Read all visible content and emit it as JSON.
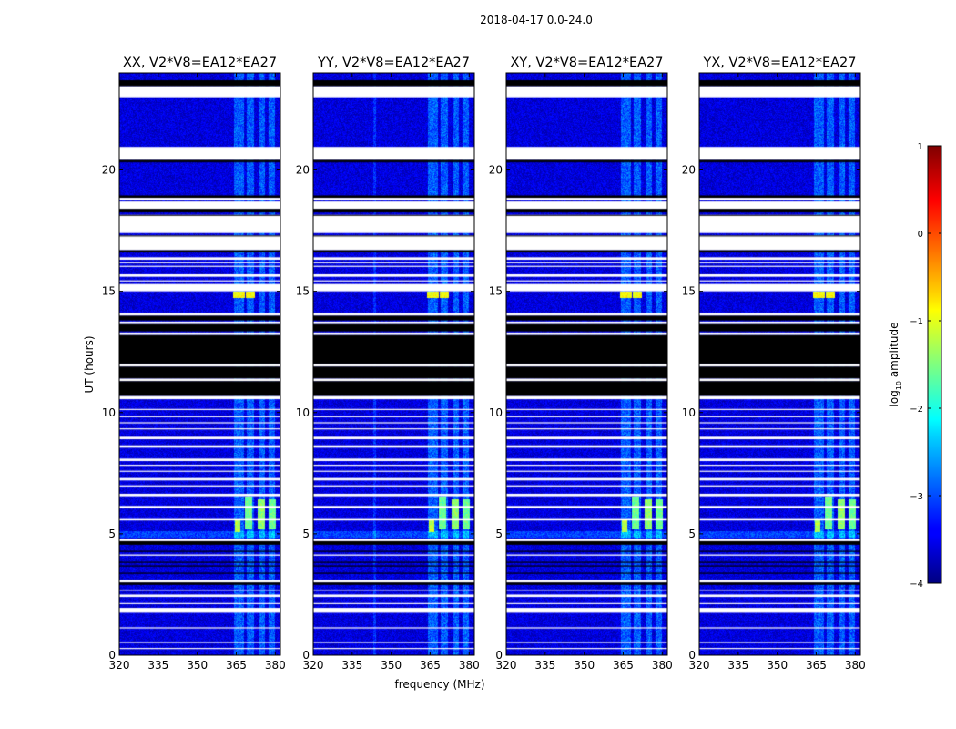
{
  "suptitle": "2018-04-17 0.0-24.0",
  "chart_data": {
    "type": "heatmap",
    "xlabel": "frequency (MHz)",
    "ylabel": "UT (hours)",
    "xlim": [
      320,
      382
    ],
    "ylim": [
      0,
      24
    ],
    "xticks": [
      320,
      335,
      350,
      365,
      380
    ],
    "yticks": [
      0,
      5,
      10,
      15,
      20
    ],
    "colorbar": {
      "label": "log",
      "label_sub": "10",
      "label_rest": " amplitude",
      "range": [
        -4,
        1
      ],
      "ticks": [
        1,
        0,
        -1,
        -2,
        -3,
        -4
      ],
      "colormap": "jet",
      "under_label": "......"
    },
    "flagged_color": "#000000",
    "panels": [
      {
        "title": "XX, V2*V8=EA12*EA27"
      },
      {
        "title": "YY, V2*V8=EA12*EA27"
      },
      {
        "title": "XY, V2*V8=EA12*EA27"
      },
      {
        "title": "YX, V2*V8=EA12*EA27"
      }
    ],
    "no_data_intervals_hours": [
      [
        23.0,
        23.45
      ],
      [
        20.42,
        20.95
      ],
      [
        18.75,
        18.85
      ],
      [
        18.4,
        18.7
      ],
      [
        17.4,
        18.15
      ],
      [
        16.7,
        17.3
      ],
      [
        16.3,
        16.4
      ],
      [
        15.6,
        15.7
      ],
      [
        15.0,
        15.3
      ],
      [
        14.0,
        14.1
      ],
      [
        13.65,
        13.75
      ],
      [
        13.2,
        13.3
      ],
      [
        11.9,
        12.0
      ],
      [
        11.3,
        11.4
      ],
      [
        10.55,
        10.68
      ],
      [
        8.9,
        9.0
      ],
      [
        8.55,
        8.65
      ],
      [
        8.0,
        8.1
      ],
      [
        7.2,
        7.3
      ],
      [
        6.95,
        7.0
      ],
      [
        6.55,
        6.65
      ],
      [
        6.05,
        6.15
      ],
      [
        5.55,
        5.65
      ],
      [
        4.7,
        4.8
      ],
      [
        4.1,
        4.15
      ],
      [
        3.0,
        3.1
      ],
      [
        2.4,
        2.5
      ],
      [
        1.75,
        1.95
      ]
    ],
    "flagged_intervals_hours": [
      [
        23.45,
        23.7
      ],
      [
        20.35,
        20.42
      ],
      [
        18.85,
        18.95
      ],
      [
        18.25,
        18.4
      ],
      [
        17.97,
        18.05
      ],
      [
        16.6,
        16.7
      ],
      [
        13.8,
        14.0
      ],
      [
        13.35,
        13.65
      ],
      [
        12.0,
        13.2
      ],
      [
        11.4,
        11.9
      ],
      [
        10.68,
        11.3
      ],
      [
        4.55,
        4.7
      ],
      [
        2.9,
        3.0
      ]
    ],
    "features": [
      {
        "label": "bright band",
        "freq_mhz": [
          364.5,
          366.5
        ],
        "hours": [
          5.1,
          5.6
        ],
        "log10_amplitude": -1.2
      },
      {
        "label": "bright band",
        "freq_mhz": [
          368.5,
          371.0
        ],
        "hours": [
          5.2,
          6.5
        ],
        "log10_amplitude": -1.6
      },
      {
        "label": "bright band",
        "freq_mhz": [
          373.5,
          376.0
        ],
        "hours": [
          5.2,
          6.4
        ],
        "log10_amplitude": -1.4
      },
      {
        "label": "bright band",
        "freq_mhz": [
          377.5,
          380.0
        ],
        "hours": [
          5.2,
          6.4
        ],
        "log10_amplitude": -1.6
      },
      {
        "label": "bright band",
        "freq_mhz": [
          364.0,
          368.0
        ],
        "hours": [
          14.75,
          14.95
        ],
        "log10_amplitude": -0.9
      },
      {
        "label": "bright band",
        "freq_mhz": [
          369.0,
          372.0
        ],
        "hours": [
          14.75,
          14.95
        ],
        "log10_amplitude": -0.9
      }
    ]
  }
}
